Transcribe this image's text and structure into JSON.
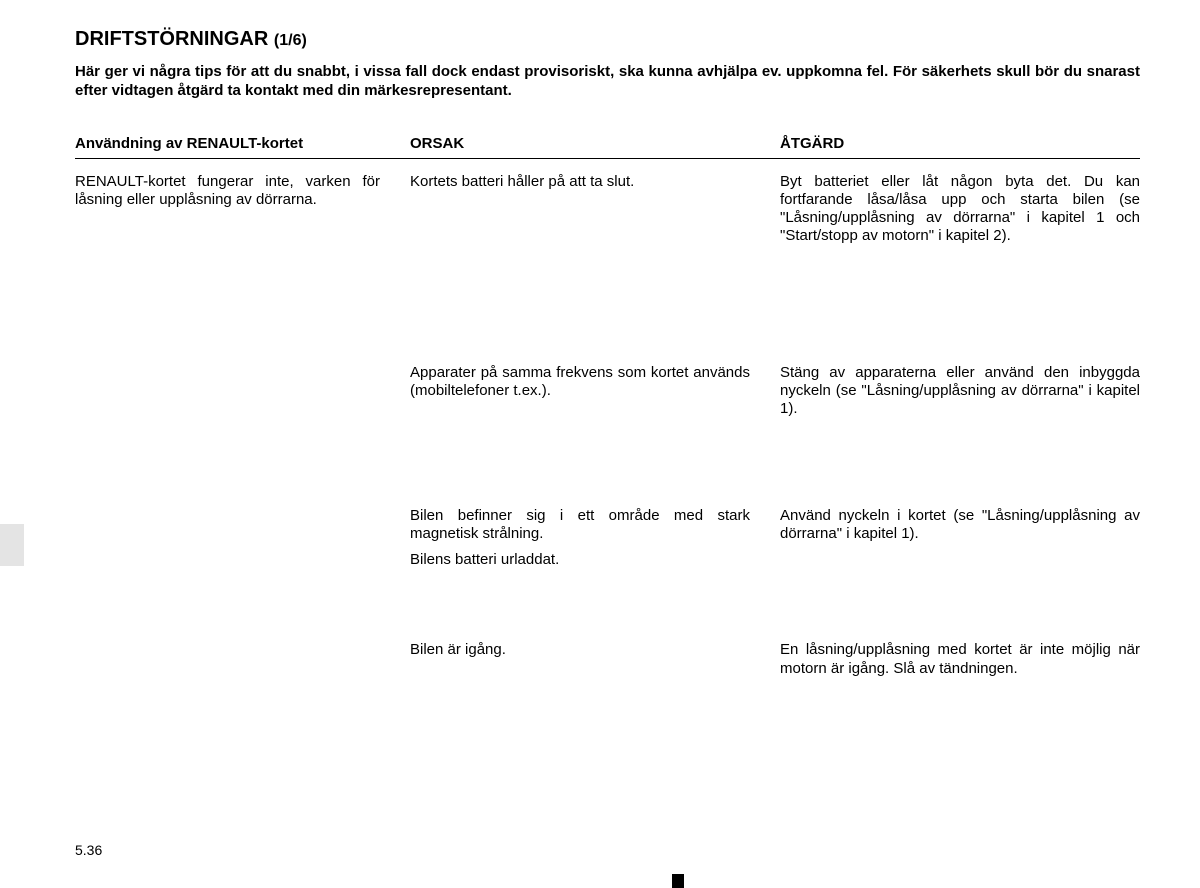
{
  "title_main": "DRIFTSTÖRNINGAR",
  "title_suffix": "(1/6)",
  "intro": "Här ger vi några tips för att du snabbt, i vissa fall dock endast provisoriskt, ska kunna avhjälpa ev. uppkomna fel. För säkerhets skull bör du snarast efter vidtagen åtgärd ta kontakt med din märkesrepresentant.",
  "headers": {
    "col1": "Användning av RENAULT-kortet",
    "col2": "ORSAK",
    "col3": "ÅTGÄRD"
  },
  "rows": {
    "r1c1": "RENAULT-kortet fungerar inte, varken för låsning eller upplåsning av dörrarna.",
    "r1c2": "Kortets batteri håller på att ta slut.",
    "r1c3": "Byt batteriet eller låt någon byta det. Du kan fortfarande låsa/låsa upp och starta bilen (se \"Låsning/upplåsning av dörrarna\" i kapitel 1 och \"Start/stopp av motorn\" i kapitel 2).",
    "r2c2": "Apparater på samma frekvens som kortet används (mobiltelefoner t.ex.).",
    "r2c3": "Stäng av apparaterna eller använd den inbyggda nyckeln (se \"Låsning/upplåsning av dörrarna\" i kapitel 1).",
    "r3c2": "Bilen befinner sig i ett område med stark magnetisk strålning.",
    "r3c3": "Använd nyckeln i kortet (se \"Låsning/upplåsning av dörrarna\" i kapitel 1).",
    "r3bc2": "Bilens batteri urladdat.",
    "r4c2": "Bilen är igång.",
    "r4c3": "En låsning/upplåsning med kortet är inte möjlig när motorn är igång. Slå av tändningen."
  },
  "page_number": "5.36",
  "colors": {
    "text": "#000000",
    "bg": "#ffffff",
    "tab": "#e4e4e4"
  }
}
